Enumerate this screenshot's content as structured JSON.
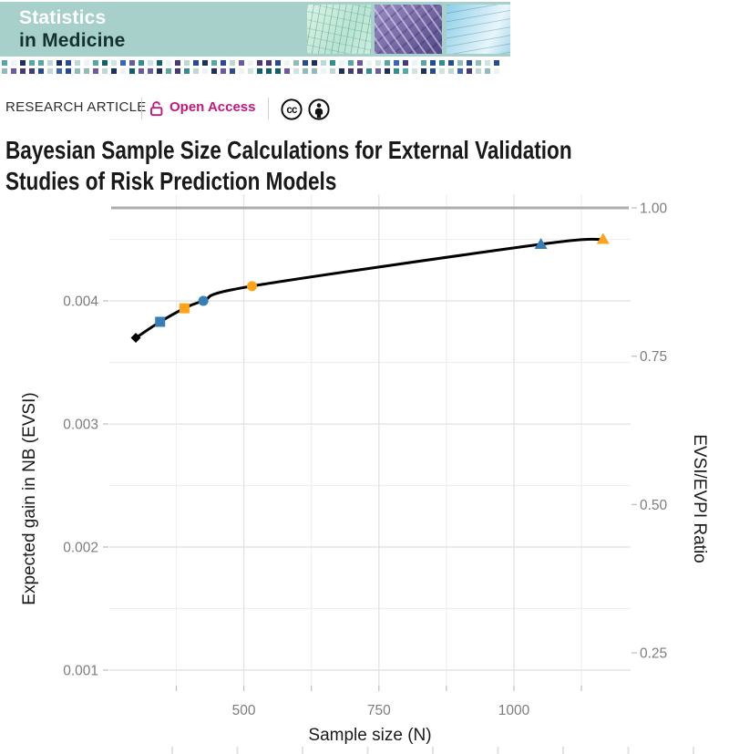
{
  "banner": {
    "journal_name_line1": "Statistics",
    "journal_name_line2": "in Medicine",
    "background_color": "#a6d0c9",
    "tiles": [
      "sketch-green-tile",
      "dna-purple-tile",
      "plot-blue-tile"
    ],
    "mosaic_palette": [
      "#2f8f8a",
      "#59a7a1",
      "#1e2f5c",
      "#473a73",
      "#3a67ad",
      "#cfe3e1",
      "#eef4f3",
      "#8fbcb7",
      "#11616b",
      "#274b8f",
      "#bfd8d5",
      "#6b5b9e"
    ]
  },
  "article_meta": {
    "category": "RESEARCH ARTICLE",
    "open_access_label": "Open Access",
    "open_access_color": "#c2187d",
    "icons": [
      "open-lock-icon",
      "cc-license-icon",
      "cc-by-icon"
    ]
  },
  "article_title": {
    "lines": [
      "Bayesian Sample Size Calculations for External Validation",
      "Studies of Risk Prediction Models"
    ],
    "full": "Bayesian Sample Size Calculations for External Validation Studies of Risk Prediction Models"
  },
  "chart_data": {
    "type": "line",
    "xlabel": "Sample size (N)",
    "ylabel_left": "Expected gain in NB (EVSI)",
    "ylabel_right": "EVSI/EVPI Ratio",
    "x_ticks": [
      500,
      750,
      1000
    ],
    "x_minor_ticks": [
      375,
      625,
      875,
      1125
    ],
    "x_range": [
      251,
      1216
    ],
    "y_ticks": [
      0.004,
      0.003,
      0.002,
      0.001
    ],
    "y_minor_ticks": [
      0.0045,
      0.0035,
      0.0025,
      0.0015
    ],
    "y_range": [
      0.000874,
      0.004867
    ],
    "right_axis_ticks": [
      {
        "label": "1.00",
        "value": 1.0
      },
      {
        "label": "0.75",
        "value": 0.75
      },
      {
        "label": "0.50",
        "value": 0.5
      },
      {
        "label": "0.25",
        "value": 0.25
      }
    ],
    "reference_line_ratio": 1.0,
    "line_color": "#000000",
    "series_points": [
      {
        "n": 300,
        "evsi": 0.0037,
        "ratio": 0.78,
        "shape": "diamond",
        "color": "#000000"
      },
      {
        "n": 345,
        "evsi": 0.00383,
        "ratio": 0.81,
        "shape": "square",
        "color": "#377eb8"
      },
      {
        "n": 390,
        "evsi": 0.00394,
        "ratio": 0.83,
        "shape": "square",
        "color": "#ffa319"
      },
      {
        "n": 425,
        "evsi": 0.004,
        "ratio": 0.84,
        "shape": "circle",
        "color": "#377eb8"
      },
      {
        "n": 515,
        "evsi": 0.00412,
        "ratio": 0.87,
        "shape": "circle",
        "color": "#ffa319"
      },
      {
        "n": 1050,
        "evsi": 0.00446,
        "ratio": 0.94,
        "shape": "triangle",
        "color": "#377eb8"
      },
      {
        "n": 1165,
        "evsi": 0.0045,
        "ratio": 0.95,
        "shape": "triangle",
        "color": "#ffa319"
      }
    ],
    "grid": true,
    "legend_position": "none",
    "tick_label_color": "#7d7d7d",
    "grid_major_color": "#e4e4e4",
    "grid_minor_color": "#efefef",
    "reference_line_color": "#adadad",
    "tick_mark_color": "#c2c2c2",
    "axis_title_color": "#1a1a1a"
  }
}
